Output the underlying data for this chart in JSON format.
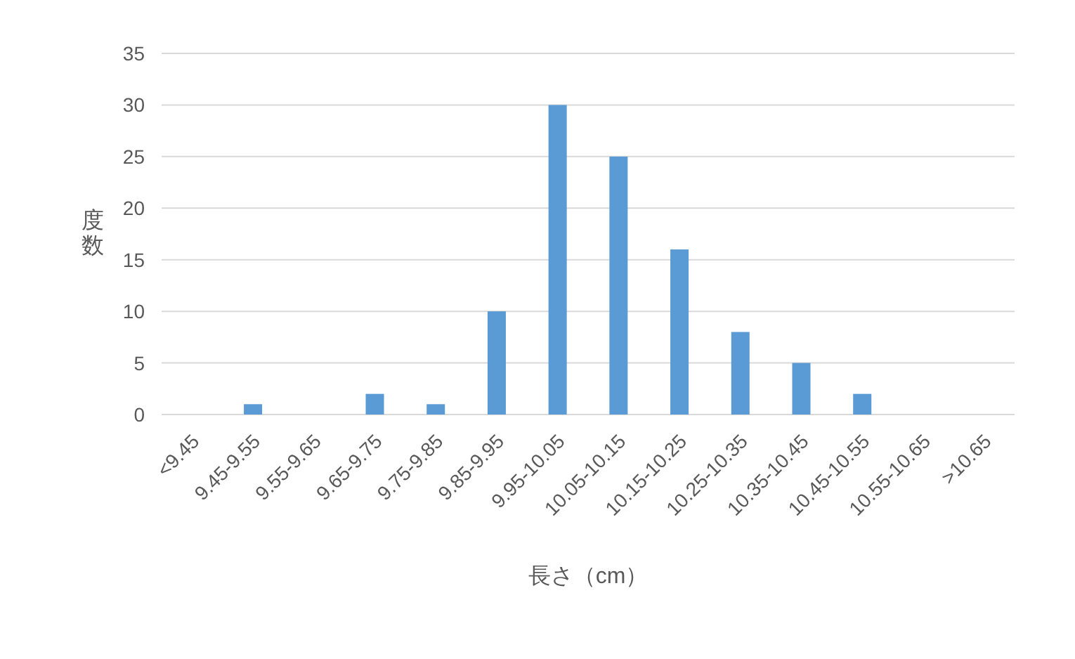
{
  "chart_data": {
    "type": "bar",
    "xlabel": "長さ（cm）",
    "ylabel": "度数",
    "categories": [
      "<9.45",
      "9.45-9.55",
      "9.55-9.65",
      "9.65-9.75",
      "9.75-9.85",
      "9.85-9.95",
      "9.95-10.05",
      "10.05-10.15",
      "10.15-10.25",
      "10.25-10.35",
      "10.35-10.45",
      "10.45-10.55",
      "10.55-10.65",
      ">10.65"
    ],
    "values": [
      0,
      1,
      0,
      2,
      1,
      10,
      30,
      25,
      16,
      8,
      5,
      2,
      0,
      0
    ],
    "color": "#5b9bd5",
    "ylim": [
      0,
      35
    ],
    "yticks": [
      0,
      5,
      10,
      15,
      20,
      25,
      30,
      35
    ],
    "grid": "y"
  }
}
